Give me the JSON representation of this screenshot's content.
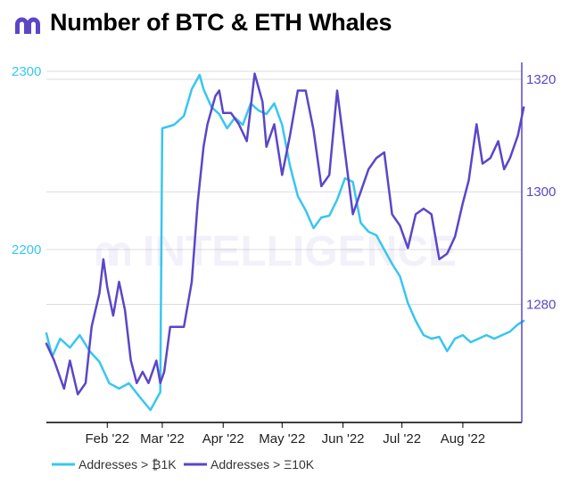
{
  "header": {
    "title": "Number of BTC & ETH Whales",
    "logo_icon": "intelligence-logo-icon"
  },
  "watermark": "INTELLIGENCE",
  "colors": {
    "btc": "#38c6f0",
    "eth": "#5b46c8",
    "grid": "#dcdcdc",
    "axis": "#000000"
  },
  "chart_data": {
    "type": "line",
    "title": "Number of BTC & ETH Whales",
    "x_ticks": [
      "Feb '22",
      "Mar '22",
      "Apr '22",
      "May '22",
      "Jun '22",
      "Jul '22",
      "Aug '22"
    ],
    "x_range": [
      "2022-01-01",
      "2022-08-31"
    ],
    "y_left": {
      "ticks": [
        2200,
        2300
      ],
      "range": [
        2103,
        2305
      ]
    },
    "y_right": {
      "ticks": [
        1280,
        1300,
        1320
      ],
      "range": [
        1259,
        1323
      ]
    },
    "legend_position": "bottom-left",
    "series": [
      {
        "name": "Addresses > ₿1K",
        "axis": "left",
        "days": [
          0,
          3,
          7,
          12,
          17,
          22,
          27,
          32,
          37,
          42,
          47,
          53,
          57,
          58,
          59,
          65,
          70,
          74,
          78,
          80,
          84,
          88,
          92,
          96,
          100,
          104,
          108,
          112,
          116,
          120,
          124,
          128,
          132,
          136,
          140,
          144,
          148,
          152,
          156,
          160,
          164,
          168,
          172,
          176,
          180,
          184,
          188,
          192,
          196,
          200,
          204,
          208,
          212,
          216,
          220,
          224,
          228,
          232,
          236,
          240,
          243
        ],
        "values": [
          2153,
          2140,
          2150,
          2145,
          2152,
          2143,
          2137,
          2125,
          2122,
          2125,
          2118,
          2110,
          2118,
          2120,
          2268,
          2270,
          2275,
          2290,
          2298,
          2290,
          2280,
          2276,
          2268,
          2274,
          2270,
          2282,
          2278,
          2276,
          2282,
          2270,
          2247,
          2230,
          2222,
          2212,
          2218,
          2219,
          2228,
          2240,
          2238,
          2215,
          2210,
          2208,
          2200,
          2192,
          2185,
          2170,
          2160,
          2152,
          2150,
          2151,
          2143,
          2150,
          2152,
          2148,
          2150,
          2152,
          2150,
          2152,
          2154,
          2158,
          2160
        ]
      },
      {
        "name": "Addresses > Ξ10K",
        "axis": "right",
        "days": [
          0,
          4,
          9,
          12,
          16,
          20,
          23,
          27,
          29,
          31,
          34,
          37,
          40,
          43,
          46,
          49,
          52,
          56,
          58,
          60,
          63,
          66,
          70,
          74,
          77,
          80,
          82,
          86,
          88,
          90,
          94,
          98,
          102,
          106,
          110,
          112,
          116,
          120,
          124,
          128,
          132,
          136,
          140,
          144,
          148,
          152,
          156,
          160,
          164,
          168,
          172,
          176,
          180,
          184,
          188,
          192,
          196,
          200,
          204,
          208,
          212,
          215,
          219,
          222,
          226,
          230,
          233,
          236,
          240,
          243
        ],
        "values": [
          1273,
          1270,
          1265,
          1270,
          1264,
          1266,
          1276,
          1282,
          1288,
          1283,
          1278,
          1284,
          1279,
          1270,
          1266,
          1268,
          1266,
          1270,
          1266,
          1268,
          1276,
          1276,
          1276,
          1284,
          1298,
          1308,
          1312,
          1317,
          1318,
          1314,
          1314,
          1312,
          1309,
          1321,
          1316,
          1308,
          1312,
          1303,
          1310,
          1318,
          1318,
          1311,
          1301,
          1303,
          1318,
          1307,
          1296,
          1300,
          1304,
          1306,
          1307,
          1296,
          1294,
          1290,
          1296,
          1297,
          1296,
          1288,
          1289,
          1292,
          1298,
          1302,
          1312,
          1305,
          1306,
          1309,
          1304,
          1306,
          1310,
          1315
        ]
      }
    ]
  }
}
